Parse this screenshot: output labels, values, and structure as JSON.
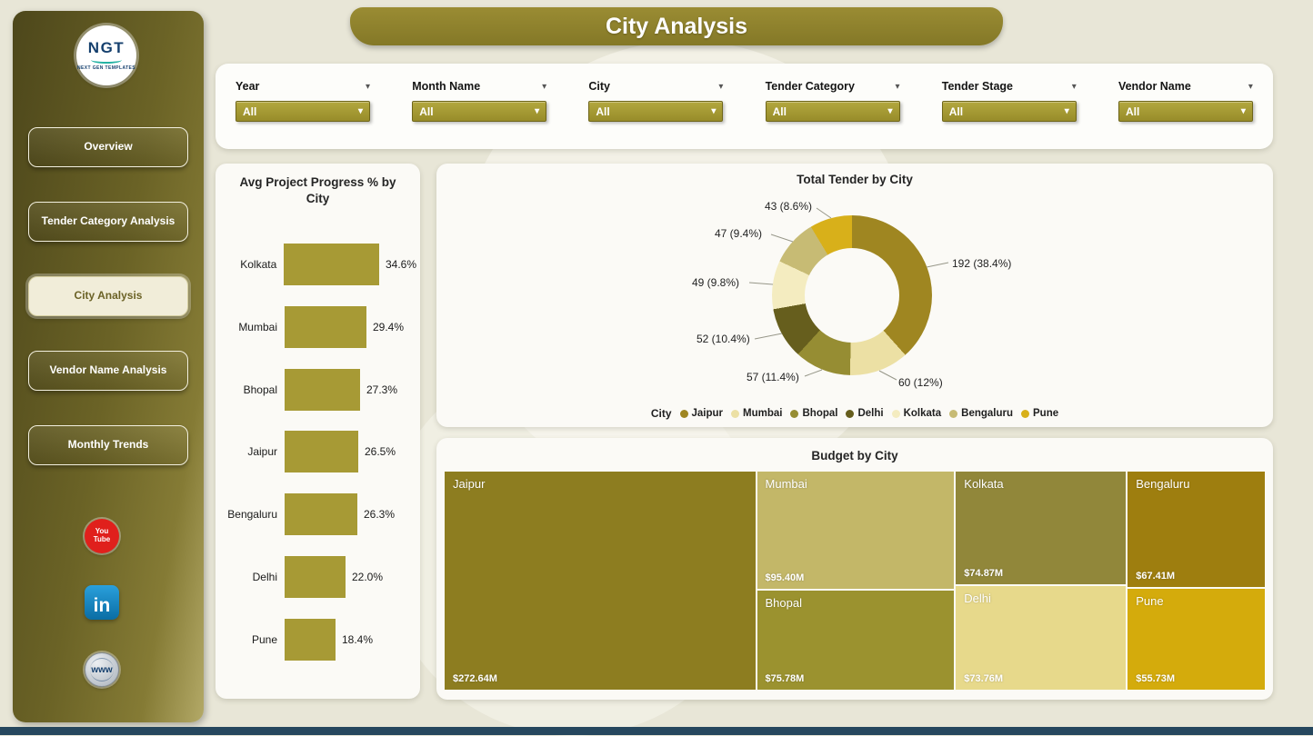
{
  "page": {
    "title": "City Analysis"
  },
  "sidebar": {
    "logo": {
      "text": "NGT",
      "subtext": "NEXT GEN TEMPLATES"
    },
    "items": [
      {
        "label": "Overview",
        "active": false
      },
      {
        "label": "Tender Category Analysis",
        "active": false
      },
      {
        "label": "City Analysis",
        "active": true
      },
      {
        "label": "Vendor Name Analysis",
        "active": false
      },
      {
        "label": "Monthly Trends",
        "active": false
      }
    ],
    "social": {
      "youtube_line1": "You",
      "youtube_line2": "Tube",
      "linkedin": "in",
      "website": "www"
    }
  },
  "filters": [
    {
      "label": "Year",
      "value": "All"
    },
    {
      "label": "Month Name",
      "value": "All"
    },
    {
      "label": "City",
      "value": "All"
    },
    {
      "label": "Tender Category",
      "value": "All"
    },
    {
      "label": "Tender Stage",
      "value": "All"
    },
    {
      "label": "Vendor Name",
      "value": "All"
    }
  ],
  "colors": {
    "page_background": "#e8e6d7",
    "banner": "#8b7d2a",
    "sidebar_dark": "#4d471b",
    "sidebar_light": "#b3a967",
    "accent_gold": "#a59a30",
    "panel_background": "#fbfaf6",
    "footer_bar": "#26475e"
  },
  "chart_data": [
    {
      "type": "bar",
      "orientation": "horizontal",
      "title": "Avg Project Progress % by City",
      "categories": [
        "Kolkata",
        "Mumbai",
        "Bhopal",
        "Jaipur",
        "Bengaluru",
        "Delhi",
        "Pune"
      ],
      "values": [
        34.6,
        29.4,
        27.3,
        26.5,
        26.3,
        22.0,
        18.4
      ],
      "value_labels": [
        "34.6%",
        "29.4%",
        "27.3%",
        "26.5%",
        "26.3%",
        "22.0%",
        "18.4%"
      ],
      "xlim": [
        0,
        40
      ],
      "bar_color": "#a79a35",
      "grid": false
    },
    {
      "type": "pie",
      "donut": true,
      "title": "Total Tender by City",
      "legend_title": "City",
      "legend_position": "bottom",
      "categories": [
        "Jaipur",
        "Mumbai",
        "Bhopal",
        "Delhi",
        "Kolkata",
        "Bengaluru",
        "Pune"
      ],
      "values": [
        192,
        60,
        57,
        52,
        49,
        47,
        43
      ],
      "percents": [
        38.4,
        12,
        11.4,
        10.4,
        9.8,
        9.4,
        8.6
      ],
      "labels": [
        "192 (38.4%)",
        "60 (12%)",
        "57 (11.4%)",
        "52 (10.4%)",
        "49 (9.8%)",
        "47 (9.4%)",
        "43 (8.6%)"
      ],
      "colors": [
        "#9f8621",
        "#ece0a4",
        "#968d33",
        "#665e1d",
        "#f4ecc0",
        "#c7bb74",
        "#d8b01a"
      ]
    },
    {
      "type": "treemap",
      "title": "Budget by City",
      "items": [
        {
          "name": "Jaipur",
          "value": "$272.64M",
          "color": "#8d7d20"
        },
        {
          "name": "Mumbai",
          "value": "$95.40M",
          "color": "#c3b768"
        },
        {
          "name": "Bhopal",
          "value": "$75.78M",
          "color": "#9b922f"
        },
        {
          "name": "Kolkata",
          "value": "$74.87M",
          "color": "#91873a"
        },
        {
          "name": "Delhi",
          "value": "$73.76M",
          "color": "#e7d98b"
        },
        {
          "name": "Bengaluru",
          "value": "$67.41M",
          "color": "#9e7e0f"
        },
        {
          "name": "Pune",
          "value": "$55.73M",
          "color": "#d4ab0c"
        }
      ]
    }
  ]
}
